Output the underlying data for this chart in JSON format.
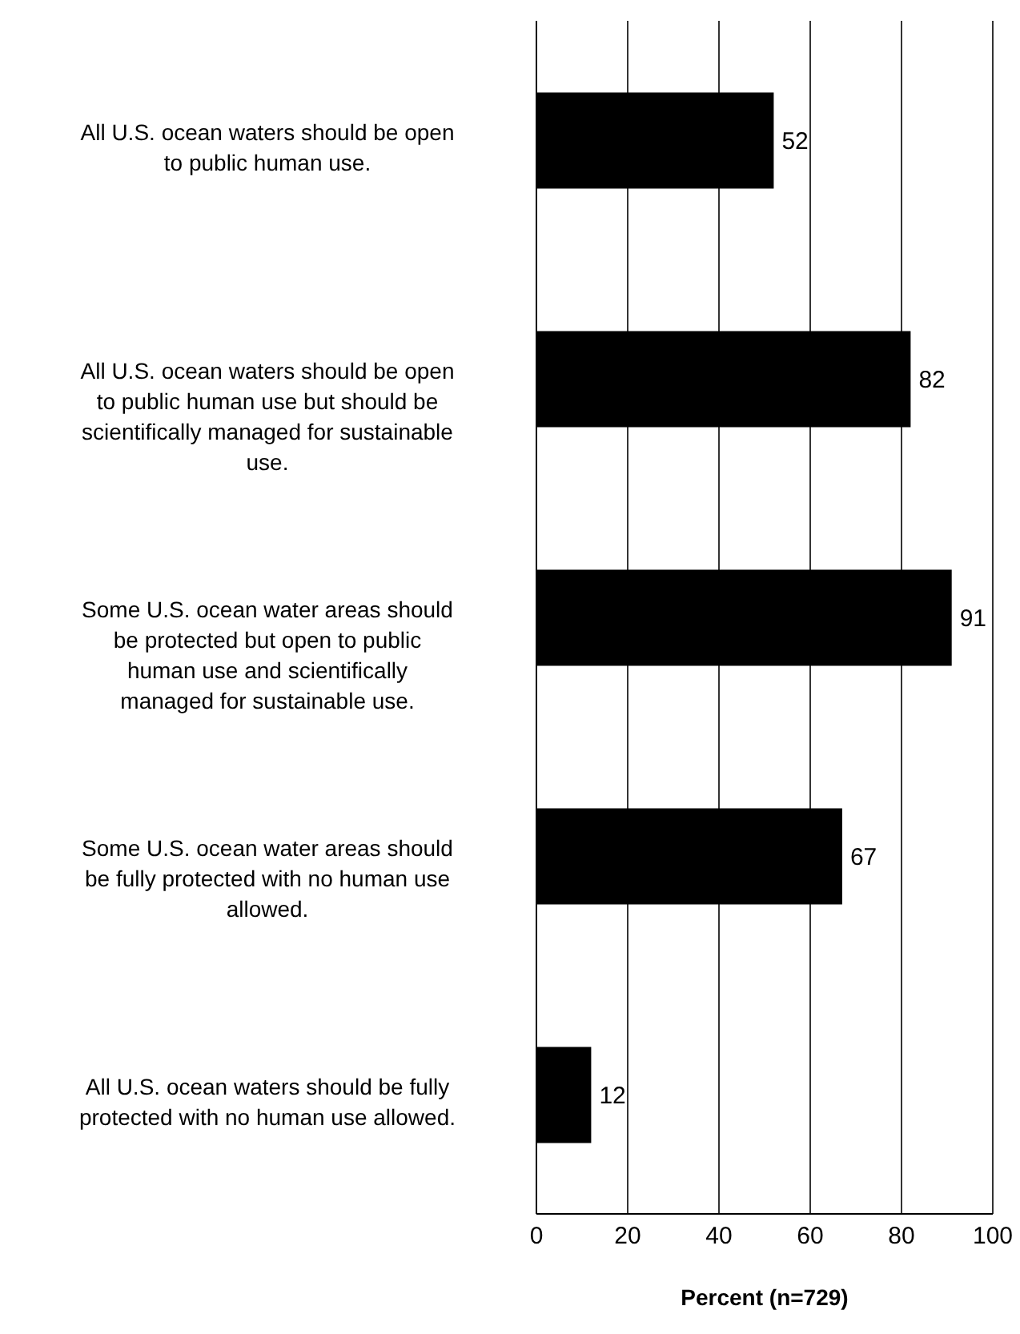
{
  "chart_data": {
    "type": "bar",
    "orientation": "horizontal",
    "xlabel": "Percent (n=729)",
    "categories": [
      "All U.S. ocean waters should be open to public human use.",
      "All U.S. ocean waters should be open to public human use but should be scientifically managed for sustainable use.",
      "Some U.S. ocean water areas should be protected but open to public human use and scientifically managed for sustainable use.",
      "Some U.S. ocean water areas should be fully protected with no human use allowed.",
      "All U.S. ocean waters should be fully protected with no human use allowed."
    ],
    "values": [
      52,
      82,
      91,
      67,
      12
    ],
    "color": "#000000",
    "data_labels": true,
    "xlim": [
      0,
      100
    ],
    "xticks": [
      0,
      20,
      40,
      60,
      80,
      100
    ],
    "grid": "x",
    "legend": false
  }
}
